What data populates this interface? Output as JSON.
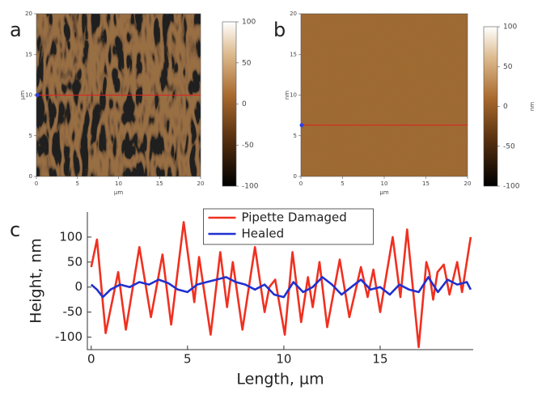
{
  "chart_data": [
    {
      "type": "image",
      "label": "a",
      "texture": "stripes",
      "xlim": [
        0,
        20
      ],
      "ylim": [
        0,
        20
      ],
      "xticks": [
        0,
        5,
        10,
        15,
        20
      ],
      "yticks": [
        0,
        5,
        10,
        15,
        20
      ],
      "xlabel": "µm",
      "ylabel": "µm",
      "profile_y": 10,
      "profile_color": "#e02020",
      "colorbar": {
        "lim": [
          -100,
          100
        ],
        "ticks": [
          100,
          50,
          0,
          -50,
          -100
        ]
      }
    },
    {
      "type": "image",
      "label": "b",
      "texture": "grain",
      "xlim": [
        0,
        20
      ],
      "ylim": [
        0,
        20
      ],
      "xticks": [
        0,
        5,
        10,
        15,
        20
      ],
      "yticks": [
        0,
        5,
        10,
        15,
        20
      ],
      "xlabel": "µm",
      "ylabel": "nm",
      "profile_y": 6.3,
      "profile_color": "#e02020",
      "colorbar": {
        "lim": [
          -100,
          100
        ],
        "ticks": [
          100,
          50,
          0,
          -50,
          -100
        ],
        "label": "nm"
      }
    },
    {
      "type": "line",
      "label": "c",
      "xlabel": "Length, µm",
      "ylabel": "Height, nm",
      "xlim": [
        -0.2,
        19.83
      ],
      "ylim": [
        -125,
        150
      ],
      "xticks": [
        0,
        5,
        10,
        15
      ],
      "yticks": [
        -100,
        -50,
        0,
        50,
        100
      ],
      "legend": "upper center",
      "series": [
        {
          "name": "Pipette Damaged",
          "color": "#f03020",
          "x": [
            0.0,
            0.3,
            0.75,
            1.4,
            1.8,
            2.5,
            3.1,
            3.7,
            4.15,
            4.8,
            5.35,
            5.6,
            6.2,
            6.7,
            7.05,
            7.35,
            7.85,
            8.5,
            9.0,
            9.25,
            9.55,
            10.05,
            10.45,
            10.9,
            11.25,
            11.5,
            11.85,
            12.25,
            12.9,
            13.4,
            14.0,
            14.35,
            14.65,
            15.0,
            15.65,
            16.05,
            16.4,
            17.0,
            17.4,
            17.55,
            17.75,
            17.98,
            18.3,
            18.6,
            19.0,
            19.25,
            19.7
          ],
          "values": [
            40,
            95,
            -92,
            30,
            -85,
            80,
            -60,
            65,
            -75,
            130,
            -30,
            60,
            -95,
            70,
            -40,
            50,
            -85,
            80,
            -50,
            0,
            15,
            -95,
            70,
            -70,
            20,
            -40,
            50,
            -80,
            55,
            -60,
            40,
            -20,
            35,
            -50,
            100,
            -20,
            115,
            -120,
            50,
            30,
            -25,
            30,
            45,
            -15,
            50,
            -10,
            100
          ]
        },
        {
          "name": "Healed",
          "color": "#2030d0",
          "x": [
            0.0,
            0.3,
            0.6,
            1.0,
            1.5,
            2.0,
            2.5,
            3.0,
            3.5,
            4.0,
            4.5,
            5.0,
            5.5,
            6.0,
            6.5,
            7.0,
            7.5,
            8.0,
            8.5,
            9.0,
            9.5,
            10.0,
            10.5,
            11.0,
            11.5,
            12.0,
            12.5,
            13.0,
            13.5,
            14.0,
            14.5,
            15.0,
            15.5,
            16.0,
            16.5,
            17.0,
            17.5,
            18.0,
            18.5,
            19.0,
            19.5,
            19.7
          ],
          "values": [
            5,
            -5,
            -20,
            -5,
            5,
            0,
            10,
            5,
            15,
            8,
            -5,
            -10,
            5,
            10,
            15,
            20,
            10,
            5,
            -5,
            5,
            -15,
            -20,
            10,
            -10,
            0,
            20,
            5,
            -15,
            0,
            15,
            -5,
            0,
            -15,
            5,
            -5,
            -10,
            20,
            -10,
            15,
            5,
            10,
            -5
          ]
        }
      ]
    }
  ]
}
